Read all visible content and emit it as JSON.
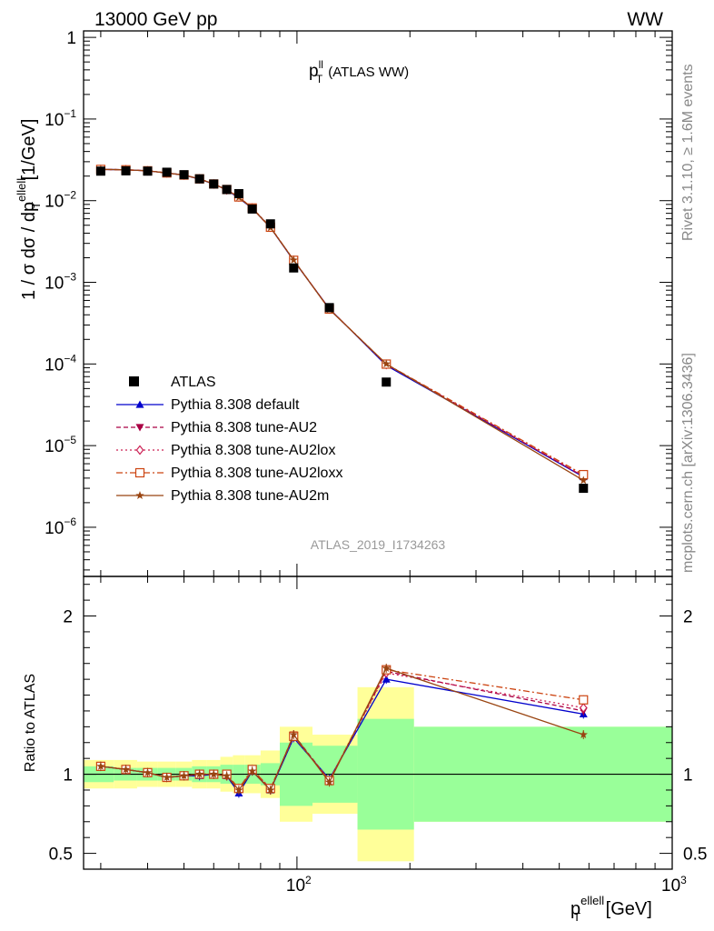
{
  "header": {
    "left": "13000 GeV pp",
    "right": "WW"
  },
  "side_labels": {
    "rivet": "Rivet 3.1.10, ≥ 1.6M events",
    "mcplots": "mcplots.cern.ch [arXiv:1306.3436]"
  },
  "chart_data": {
    "type": "line",
    "title": {
      "main": "p",
      "sup": "ll",
      "sub": "T",
      "tail": "(ATLAS WW)"
    },
    "watermark": "ATLAS_2019_I1734263",
    "ylabel": {
      "pre": "1 / σ  dσ / dp",
      "sup": "ellell",
      "sub": "T",
      "post": " [1/GeV]"
    },
    "xlabel": {
      "main": "p",
      "sup": "ellell",
      "sub": "T",
      "post": " [GeV]"
    },
    "ratio_ylabel": "Ratio to ATLAS",
    "x_scale": "log",
    "xlim": [
      27,
      1000
    ],
    "y_scale": "log",
    "ylim": [
      2.5e-07,
      1.2
    ],
    "ratio_ylim": [
      0.4,
      2.25
    ],
    "x_ticks": [
      {
        "v": 100,
        "base": "10",
        "exp": "2"
      },
      {
        "v": 1000,
        "base": "10",
        "exp": "3"
      }
    ],
    "y_ticks": [
      {
        "v": 1,
        "base": "1",
        "exp": ""
      },
      {
        "v": 0.1,
        "base": "10",
        "exp": "−1"
      },
      {
        "v": 0.01,
        "base": "10",
        "exp": "−2"
      },
      {
        "v": 0.001,
        "base": "10",
        "exp": "−3"
      },
      {
        "v": 0.0001,
        "base": "10",
        "exp": "−4"
      },
      {
        "v": 1e-05,
        "base": "10",
        "exp": "−5"
      },
      {
        "v": 1e-06,
        "base": "10",
        "exp": "−6"
      }
    ],
    "ratio_ticks": [
      {
        "v": 0.5,
        "label": "0.5"
      },
      {
        "v": 1,
        "label": "1"
      },
      {
        "v": 2,
        "label": "2"
      }
    ],
    "bins": [
      {
        "lo": 27,
        "hi": 32.5
      },
      {
        "lo": 32.5,
        "hi": 37.5
      },
      {
        "lo": 37.5,
        "hi": 42.5
      },
      {
        "lo": 42.5,
        "hi": 47.5
      },
      {
        "lo": 47.5,
        "hi": 52.5
      },
      {
        "lo": 52.5,
        "hi": 57.5
      },
      {
        "lo": 57.5,
        "hi": 62.5
      },
      {
        "lo": 62.5,
        "hi": 67.5
      },
      {
        "lo": 67.5,
        "hi": 72.5
      },
      {
        "lo": 72.5,
        "hi": 80
      },
      {
        "lo": 80,
        "hi": 90
      },
      {
        "lo": 90,
        "hi": 110
      },
      {
        "lo": 110,
        "hi": 145
      },
      {
        "lo": 145,
        "hi": 205
      },
      {
        "lo": 205,
        "hi": 1000
      }
    ],
    "x": [
      30,
      35,
      40,
      45,
      50,
      55,
      60,
      65,
      70,
      76,
      85,
      98,
      122,
      173,
      580
    ],
    "data": {
      "name": "ATLAS",
      "values": [
        0.023,
        0.0232,
        0.023,
        0.0223,
        0.0208,
        0.0185,
        0.016,
        0.0137,
        0.0122,
        0.0079,
        0.0052,
        0.0015,
        0.00049,
        6e-05,
        3e-06
      ],
      "band_inner": [
        0.05,
        0.04,
        0.04,
        0.04,
        0.04,
        0.05,
        0.05,
        0.06,
        0.06,
        0.06,
        0.07,
        0.2,
        0.18,
        0.35,
        0.3
      ],
      "band_outer": [
        0.09,
        0.09,
        0.08,
        0.08,
        0.08,
        0.09,
        0.09,
        0.11,
        0.12,
        0.12,
        0.15,
        0.3,
        0.25,
        0.55,
        0.3
      ]
    },
    "series": [
      {
        "name": "Pythia 8.308 default",
        "color": "#0000cc",
        "dash": "",
        "marker": "triangle-up",
        "ratio": [
          1.05,
          1.03,
          1.01,
          0.98,
          0.99,
          0.99,
          1.0,
          0.99,
          0.88,
          1.02,
          0.9,
          1.23,
          0.97,
          1.6,
          1.38
        ]
      },
      {
        "name": "Pythia 8.308 tune-AU2",
        "color": "#aa0044",
        "dash": "5,3",
        "marker": "triangle-down",
        "ratio": [
          1.05,
          1.03,
          1.01,
          0.98,
          0.99,
          1.0,
          1.0,
          0.99,
          0.91,
          1.02,
          0.9,
          1.25,
          0.96,
          1.65,
          1.4
        ]
      },
      {
        "name": "Pythia 8.308 tune-AU2lox",
        "color": "#cc2255",
        "dash": "2,3",
        "marker": "diamond-open",
        "ratio": [
          1.05,
          1.03,
          1.01,
          0.98,
          0.99,
          1.0,
          1.0,
          0.99,
          0.91,
          1.03,
          0.91,
          1.24,
          0.96,
          1.64,
          1.42
        ]
      },
      {
        "name": "Pythia 8.308 tune-AU2loxx",
        "color": "#cc4411",
        "dash": "7,3,2,3",
        "marker": "square-open",
        "ratio": [
          1.05,
          1.03,
          1.01,
          0.98,
          0.99,
          1.0,
          1.0,
          1.0,
          0.91,
          1.03,
          0.91,
          1.24,
          0.96,
          1.66,
          1.47
        ]
      },
      {
        "name": "Pythia 8.308 tune-AU2m",
        "color": "#994411",
        "dash": "",
        "marker": "star",
        "ratio": [
          1.05,
          1.03,
          1.01,
          0.98,
          0.99,
          1.0,
          1.0,
          0.99,
          0.9,
          1.02,
          0.9,
          1.25,
          0.95,
          1.67,
          1.25
        ]
      }
    ]
  }
}
